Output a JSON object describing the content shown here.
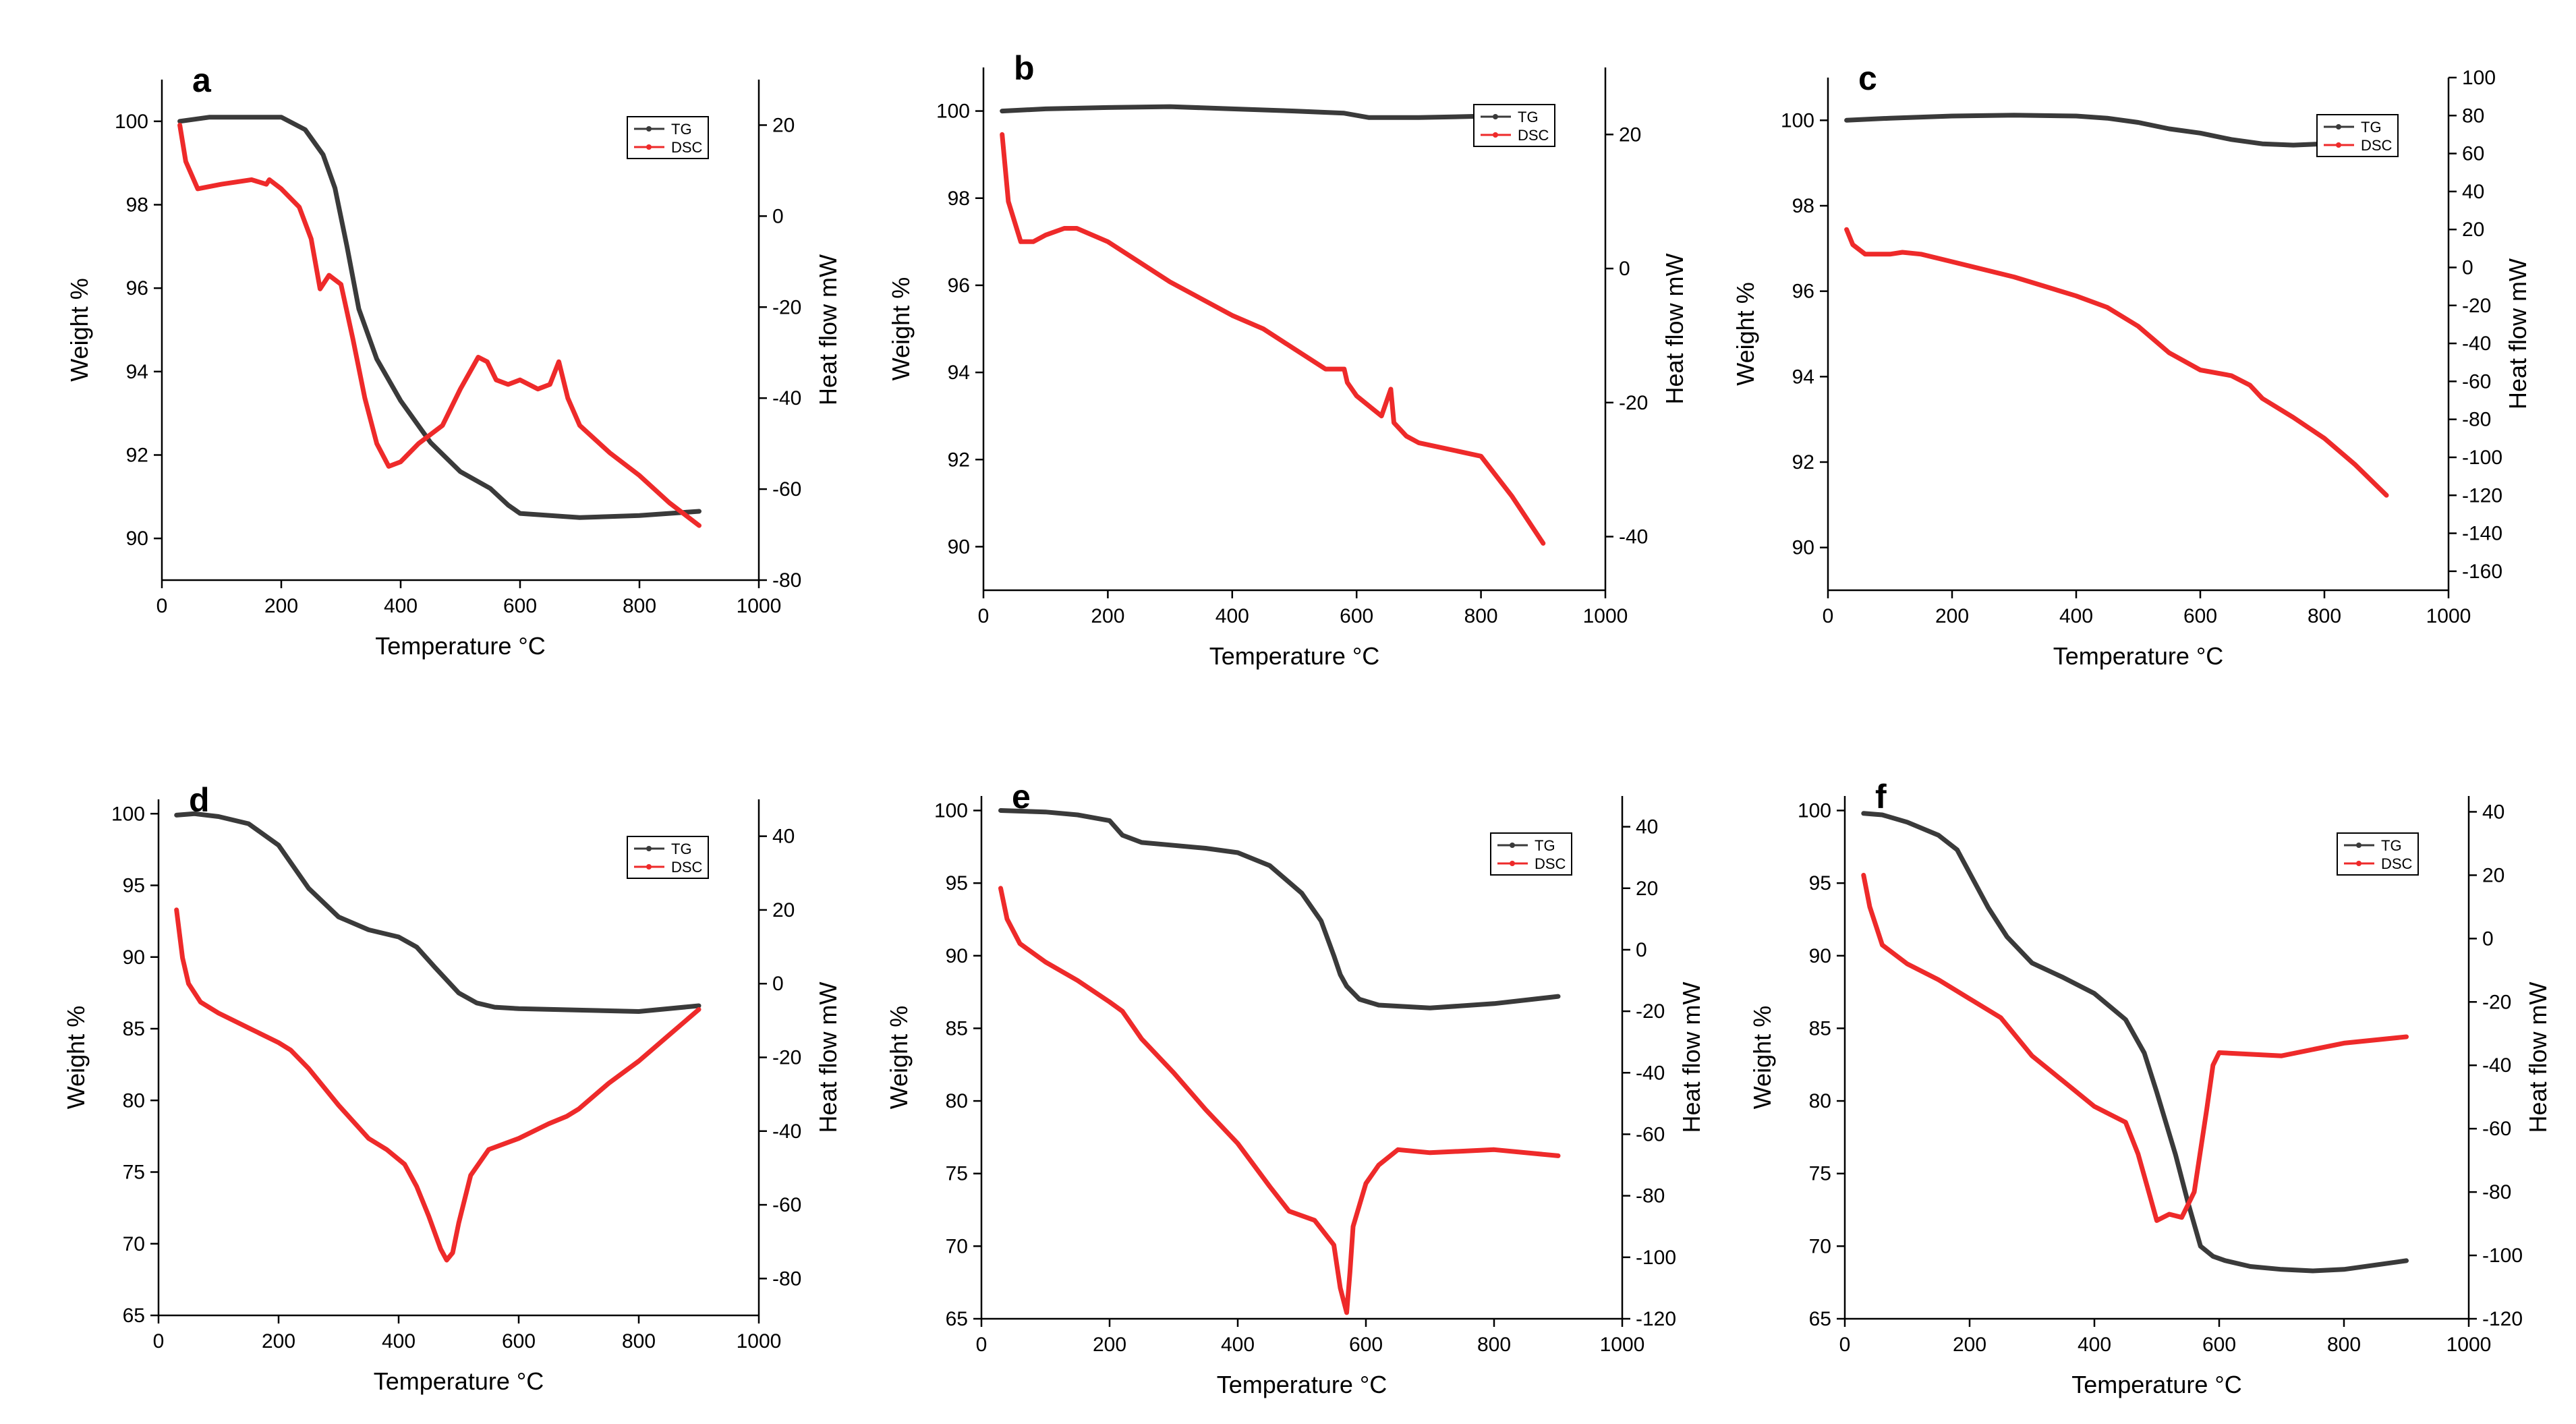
{
  "colors": {
    "tg": "#3a3a3a",
    "dsc": "#ee2a2a"
  },
  "chart_data": [
    {
      "id": "a",
      "type": "line",
      "panel": "a",
      "xlabel": "Temperature °C",
      "ylabel": "Weight %",
      "y2label": "Heat flow mW",
      "xlim": [
        0,
        1000
      ],
      "xticks": [
        0,
        200,
        400,
        600,
        800,
        1000
      ],
      "ylim": [
        89,
        101
      ],
      "yticks": [
        90,
        92,
        94,
        96,
        98,
        100
      ],
      "y2lim": [
        -80,
        30
      ],
      "y2ticks": [
        -80,
        -60,
        -40,
        -20,
        0,
        20
      ],
      "legend": [
        "TG",
        "DSC"
      ],
      "series": [
        {
          "name": "TG",
          "axis": "left",
          "x": [
            30,
            80,
            150,
            200,
            240,
            270,
            290,
            310,
            330,
            360,
            400,
            450,
            500,
            550,
            580,
            600,
            700,
            800,
            900
          ],
          "y": [
            100.0,
            100.1,
            100.1,
            100.1,
            99.8,
            99.2,
            98.4,
            97.0,
            95.5,
            94.3,
            93.3,
            92.3,
            91.6,
            91.2,
            90.8,
            90.6,
            90.5,
            90.55,
            90.65
          ]
        },
        {
          "name": "DSC",
          "axis": "right",
          "x": [
            30,
            40,
            60,
            100,
            150,
            175,
            180,
            200,
            230,
            250,
            265,
            280,
            300,
            320,
            340,
            360,
            380,
            400,
            430,
            470,
            500,
            530,
            545,
            560,
            580,
            600,
            630,
            650,
            665,
            680,
            700,
            750,
            800,
            850,
            900
          ],
          "y": [
            20,
            12,
            6,
            7,
            8,
            7,
            8,
            6,
            2,
            -5,
            -16,
            -13,
            -15,
            -27,
            -40,
            -50,
            -55,
            -54,
            -50,
            -46,
            -38,
            -31,
            -32,
            -36,
            -37,
            -36,
            -38,
            -37,
            -32,
            -40,
            -46,
            -52,
            -57,
            -63,
            -68
          ]
        }
      ]
    },
    {
      "id": "b",
      "type": "line",
      "panel": "b",
      "xlabel": "Temperature °C",
      "ylabel": "Weight %",
      "y2label": "Heat flow mW",
      "xlim": [
        0,
        1000
      ],
      "xticks": [
        0,
        200,
        400,
        600,
        800,
        1000
      ],
      "ylim": [
        89,
        101
      ],
      "yticks": [
        90,
        92,
        94,
        96,
        98,
        100
      ],
      "y2lim": [
        -48,
        30
      ],
      "y2ticks": [
        -40,
        -20,
        0,
        20
      ],
      "legend": [
        "TG",
        "DSC"
      ],
      "series": [
        {
          "name": "TG",
          "axis": "left",
          "x": [
            30,
            100,
            200,
            300,
            400,
            500,
            580,
            620,
            700,
            800,
            900
          ],
          "y": [
            100.0,
            100.05,
            100.08,
            100.1,
            100.05,
            100.0,
            99.95,
            99.85,
            99.85,
            99.88,
            99.9
          ]
        },
        {
          "name": "DSC",
          "axis": "right",
          "x": [
            30,
            40,
            60,
            80,
            100,
            130,
            150,
            200,
            300,
            400,
            450,
            500,
            550,
            580,
            585,
            600,
            640,
            655,
            660,
            680,
            700,
            750,
            800,
            850,
            900
          ],
          "y": [
            20,
            10,
            4,
            4,
            5,
            6,
            6,
            4,
            -2,
            -7,
            -9,
            -12,
            -15,
            -15,
            -17,
            -19,
            -22,
            -18,
            -23,
            -25,
            -26,
            -27,
            -28,
            -34,
            -41
          ]
        }
      ]
    },
    {
      "id": "c",
      "type": "line",
      "panel": "c",
      "xlabel": "Temperature °C",
      "ylabel": "Weight %",
      "y2label": "Heat flow mW",
      "xlim": [
        0,
        1000
      ],
      "xticks": [
        0,
        200,
        400,
        600,
        800,
        1000
      ],
      "ylim": [
        89,
        101
      ],
      "yticks": [
        90,
        92,
        94,
        96,
        98,
        100
      ],
      "y2lim": [
        -170,
        100
      ],
      "y2ticks": [
        -160,
        -140,
        -120,
        -100,
        -80,
        -60,
        -40,
        -20,
        0,
        20,
        40,
        60,
        80,
        100
      ],
      "legend": [
        "TG",
        "DSC"
      ],
      "series": [
        {
          "name": "TG",
          "axis": "left",
          "x": [
            30,
            100,
            200,
            300,
            400,
            450,
            500,
            550,
            600,
            650,
            700,
            750,
            800
          ],
          "y": [
            100.0,
            100.05,
            100.1,
            100.12,
            100.1,
            100.05,
            99.95,
            99.8,
            99.7,
            99.55,
            99.45,
            99.42,
            99.45
          ]
        },
        {
          "name": "DSC",
          "axis": "right",
          "x": [
            30,
            40,
            60,
            100,
            120,
            150,
            200,
            300,
            400,
            450,
            500,
            550,
            600,
            650,
            680,
            700,
            750,
            800,
            850,
            900
          ],
          "y": [
            20,
            12,
            7,
            7,
            8,
            7,
            3,
            -5,
            -15,
            -21,
            -31,
            -45,
            -54,
            -57,
            -62,
            -69,
            -79,
            -90,
            -104,
            -120
          ]
        }
      ]
    },
    {
      "id": "d",
      "type": "line",
      "panel": "d",
      "xlabel": "Temperature °C",
      "ylabel": "Weight %",
      "y2label": "Heat flow mW",
      "xlim": [
        0,
        1000
      ],
      "xticks": [
        0,
        200,
        400,
        600,
        800,
        1000
      ],
      "ylim": [
        65,
        101
      ],
      "yticks": [
        65,
        70,
        75,
        80,
        85,
        90,
        95,
        100
      ],
      "y2lim": [
        -90,
        50
      ],
      "y2ticks": [
        -80,
        -60,
        -40,
        -20,
        0,
        20,
        40
      ],
      "legend": [
        "TG",
        "DSC"
      ],
      "series": [
        {
          "name": "TG",
          "axis": "left",
          "x": [
            30,
            60,
            100,
            150,
            200,
            250,
            300,
            350,
            400,
            430,
            460,
            500,
            530,
            560,
            600,
            700,
            800,
            900
          ],
          "y": [
            99.9,
            100.0,
            99.8,
            99.3,
            97.8,
            94.8,
            92.8,
            91.9,
            91.4,
            90.7,
            89.3,
            87.5,
            86.8,
            86.5,
            86.4,
            86.3,
            86.2,
            86.6
          ]
        },
        {
          "name": "DSC",
          "axis": "right",
          "x": [
            30,
            40,
            50,
            70,
            100,
            150,
            200,
            220,
            250,
            300,
            350,
            380,
            410,
            430,
            450,
            470,
            480,
            490,
            500,
            520,
            550,
            600,
            650,
            680,
            700,
            750,
            800,
            850,
            900
          ],
          "y": [
            20,
            7,
            0,
            -5,
            -8,
            -12,
            -16,
            -18,
            -23,
            -33,
            -42,
            -45,
            -49,
            -55,
            -63,
            -72,
            -75,
            -73,
            -65,
            -52,
            -45,
            -42,
            -38,
            -36,
            -34,
            -27,
            -21,
            -14,
            -7
          ]
        }
      ]
    },
    {
      "id": "e",
      "type": "line",
      "panel": "e",
      "xlabel": "Temperature °C",
      "ylabel": "Weight %",
      "y2label": "Heat flow mW",
      "xlim": [
        0,
        1000
      ],
      "xticks": [
        0,
        200,
        400,
        600,
        800,
        1000
      ],
      "ylim": [
        65,
        101
      ],
      "yticks": [
        65,
        70,
        75,
        80,
        85,
        90,
        95,
        100
      ],
      "y2lim": [
        -120,
        50
      ],
      "y2ticks": [
        -120,
        -100,
        -80,
        -60,
        -40,
        -20,
        0,
        20,
        40
      ],
      "legend": [
        "TG",
        "DSC"
      ],
      "series": [
        {
          "name": "TG",
          "axis": "left",
          "x": [
            30,
            100,
            150,
            200,
            220,
            250,
            300,
            350,
            400,
            450,
            500,
            530,
            550,
            560,
            570,
            590,
            620,
            700,
            800,
            900
          ],
          "y": [
            100.0,
            99.9,
            99.7,
            99.3,
            98.3,
            97.8,
            97.6,
            97.4,
            97.1,
            96.2,
            94.3,
            92.4,
            90.0,
            88.7,
            87.9,
            87.0,
            86.6,
            86.4,
            86.7,
            87.2
          ]
        },
        {
          "name": "DSC",
          "axis": "right",
          "x": [
            30,
            40,
            60,
            100,
            150,
            200,
            220,
            250,
            300,
            350,
            400,
            450,
            480,
            520,
            550,
            560,
            570,
            575,
            580,
            600,
            620,
            650,
            700,
            800,
            900
          ],
          "y": [
            20,
            10,
            2,
            -4,
            -10,
            -17,
            -20,
            -29,
            -40,
            -52,
            -63,
            -77,
            -85,
            -88,
            -96,
            -110,
            -118,
            -105,
            -90,
            -76,
            -70,
            -65,
            -66,
            -65,
            -67
          ]
        }
      ]
    },
    {
      "id": "f",
      "type": "line",
      "panel": "f",
      "xlabel": "Temperature °C",
      "ylabel": "Weight %",
      "y2label": "Heat flow mW",
      "xlim": [
        0,
        1000
      ],
      "xticks": [
        0,
        200,
        400,
        600,
        800,
        1000
      ],
      "ylim": [
        65,
        101
      ],
      "yticks": [
        65,
        70,
        75,
        80,
        85,
        90,
        95,
        100
      ],
      "y2lim": [
        -120,
        45
      ],
      "y2ticks": [
        -120,
        -100,
        -80,
        -60,
        -40,
        -20,
        0,
        20,
        40
      ],
      "legend": [
        "TG",
        "DSC"
      ],
      "series": [
        {
          "name": "TG",
          "axis": "left",
          "x": [
            30,
            60,
            100,
            150,
            180,
            200,
            230,
            260,
            300,
            350,
            400,
            450,
            480,
            500,
            530,
            550,
            570,
            590,
            610,
            650,
            700,
            750,
            800,
            900
          ],
          "y": [
            99.8,
            99.7,
            99.2,
            98.3,
            97.3,
            95.7,
            93.3,
            91.3,
            89.5,
            88.5,
            87.4,
            85.6,
            83.3,
            80.6,
            76.3,
            73.0,
            70.0,
            69.3,
            69.0,
            68.6,
            68.4,
            68.3,
            68.4,
            69.0
          ]
        },
        {
          "name": "DSC",
          "axis": "right",
          "x": [
            30,
            40,
            60,
            100,
            150,
            200,
            250,
            300,
            350,
            400,
            450,
            470,
            490,
            500,
            520,
            540,
            560,
            580,
            590,
            600,
            700,
            800,
            900
          ],
          "y": [
            20,
            10,
            -2,
            -8,
            -13,
            -19,
            -25,
            -37,
            -45,
            -53,
            -58,
            -68,
            -82,
            -89,
            -87,
            -88,
            -80,
            -54,
            -40,
            -36,
            -37,
            -33,
            -31
          ]
        }
      ]
    }
  ]
}
